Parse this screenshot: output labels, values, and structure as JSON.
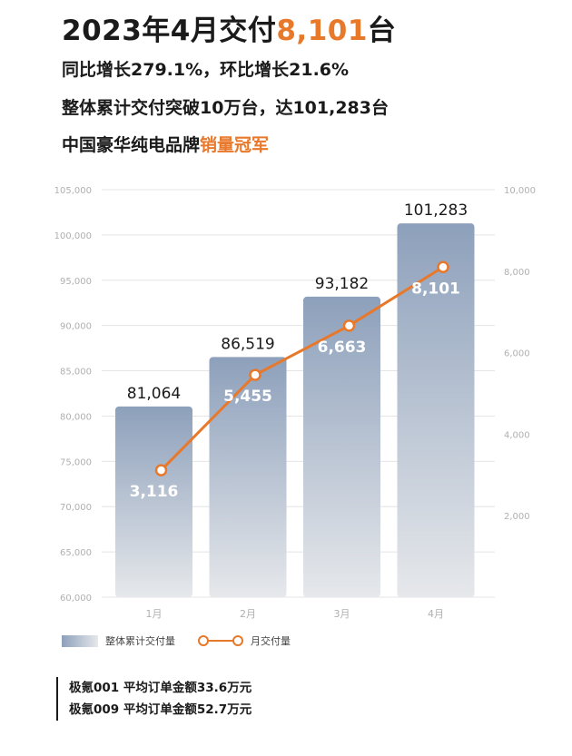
{
  "header": {
    "title_prefix": "2023年4月交付",
    "title_highlight": "8,101",
    "title_suffix": "台",
    "line1": "同比增长279.1%，环比增长21.6%",
    "line2": "整体累计交付突破10万台，达101,283台",
    "line3_prefix": "中国豪华纯电品牌",
    "line3_highlight": "销量冠军"
  },
  "colors": {
    "accent": "#e8782a",
    "bar_top": "#8da0bb",
    "bar_bottom": "#e6e8eb",
    "grid": "#e4e4e4",
    "axis_text": "#b0b0b0"
  },
  "chart_data": {
    "type": "bar+line",
    "categories": [
      "1月",
      "2月",
      "3月",
      "4月"
    ],
    "series": [
      {
        "name": "整体累计交付量",
        "type": "bar",
        "axis": "left",
        "values": [
          81064,
          86519,
          93182,
          101283
        ],
        "labels": [
          "81,064",
          "86,519",
          "93,182",
          "101,283"
        ]
      },
      {
        "name": "月交付量",
        "type": "line",
        "axis": "right",
        "values": [
          3116,
          5455,
          6663,
          8101
        ],
        "labels": [
          "3,116",
          "5,455",
          "6,663",
          "8,101"
        ]
      }
    ],
    "y_left": {
      "ylim": [
        60000,
        105000
      ],
      "ticks": [
        "60,000",
        "65,000",
        "70,000",
        "75,000",
        "80,000",
        "85,000",
        "90,000",
        "95,000",
        "100,000",
        "105,000"
      ]
    },
    "y_right": {
      "ylim": [
        0,
        10000
      ],
      "ticks": [
        "2,000",
        "4,000",
        "6,000",
        "8,000",
        "10,000"
      ]
    },
    "grid": true,
    "legend_position": "bottom-left"
  },
  "legend": {
    "bar_label": "整体累计交付量",
    "line_label": "月交付量"
  },
  "footnotes": [
    "极氪001 平均订单金额33.6万元",
    "极氪009 平均订单金额52.7万元"
  ]
}
